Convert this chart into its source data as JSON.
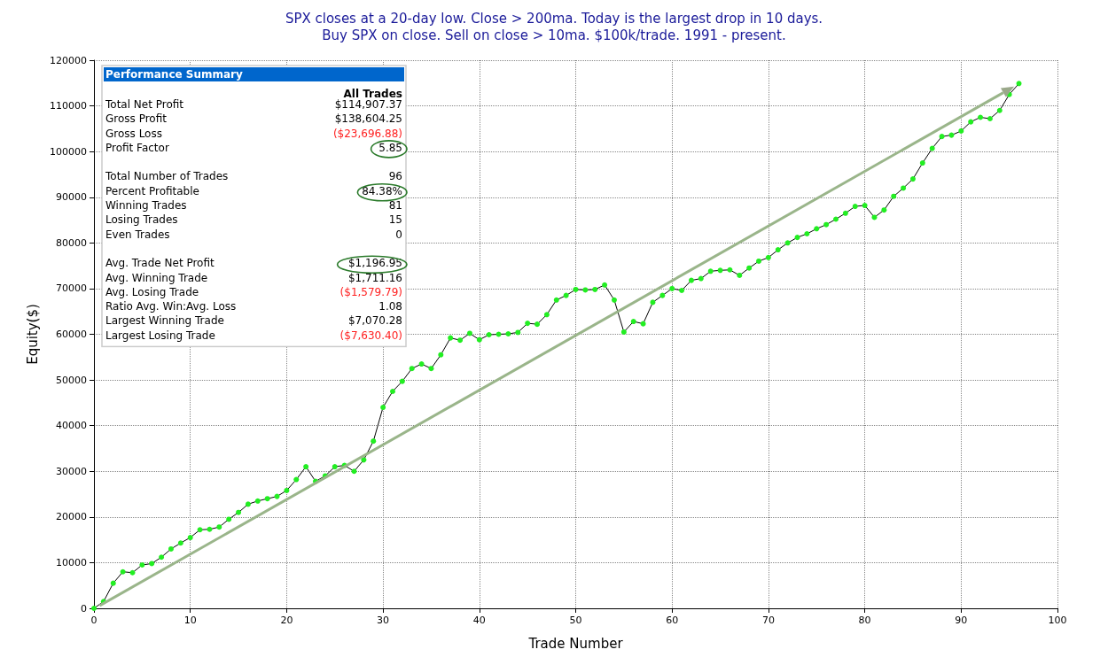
{
  "chart_data": {
    "type": "line",
    "title": "SPX closes at a 20-day low. Close > 200ma. Today is the largest drop in 10 days.",
    "subtitle": "Buy SPX on close. Sell on close > 10ma. $100k/trade. 1991 - present.",
    "xlabel": "Trade Number",
    "ylabel": "Equity($)",
    "x": [
      0,
      1,
      2,
      3,
      4,
      5,
      6,
      7,
      8,
      9,
      10,
      11,
      12,
      13,
      14,
      15,
      16,
      17,
      18,
      19,
      20,
      21,
      22,
      23,
      24,
      25,
      26,
      27,
      28,
      29,
      30,
      31,
      32,
      33,
      34,
      35,
      36,
      37,
      38,
      39,
      40,
      41,
      42,
      43,
      44,
      45,
      46,
      47,
      48,
      49,
      50,
      51,
      52,
      53,
      54,
      55,
      56,
      57,
      58,
      59,
      60,
      61,
      62,
      63,
      64,
      65,
      66,
      67,
      68,
      69,
      70,
      71,
      72,
      73,
      74,
      75,
      76,
      77,
      78,
      79,
      80,
      81,
      82,
      83,
      84,
      85,
      86,
      87,
      88,
      89,
      90,
      91,
      92,
      93,
      94,
      95,
      96
    ],
    "series": [
      {
        "color": "#000000",
        "values": [
          0,
          1500,
          5500,
          8000,
          7800,
          9500,
          9800,
          11200,
          13000,
          14300,
          15500,
          17200,
          17300,
          17800,
          19500,
          21000,
          22800,
          23500,
          24000,
          24500,
          25800,
          28200,
          31000,
          27800,
          29000,
          31000,
          31300,
          30000,
          32500,
          36600,
          44000,
          47500,
          49700,
          52500,
          53500,
          52500,
          55500,
          59200,
          58700,
          60200,
          58800,
          59900,
          60000,
          60100,
          60400,
          62400,
          62200,
          64300,
          67500,
          68500,
          69800,
          69700,
          69800,
          70800,
          67500,
          60500,
          62800,
          62300,
          67000,
          68500,
          70000,
          69600,
          71800,
          72200,
          73800,
          74000,
          74100,
          72900,
          74500,
          76000,
          76800,
          78500,
          80000,
          81200,
          82000,
          83100,
          84000,
          85200,
          86500,
          88000,
          88200,
          85600,
          87200,
          90200,
          92000,
          94000,
          97500,
          100700,
          103300,
          103600,
          104500,
          106500,
          107500,
          107200,
          109000,
          112500,
          114900
        ]
      }
    ],
    "xlim": [
      0,
      100
    ],
    "xticks": [
      0,
      10,
      20,
      30,
      40,
      50,
      60,
      70,
      80,
      90,
      100
    ],
    "ylim": [
      0,
      120000
    ],
    "yticks": [
      0,
      10000,
      20000,
      30000,
      40000,
      50000,
      60000,
      70000,
      80000,
      90000,
      100000,
      110000,
      120000
    ],
    "grid": true,
    "marker": "circle",
    "annotations": [
      "Performance Summary",
      "All Trades",
      "Total Net Profit",
      "$114,907.37",
      "Gross Profit",
      "$138,604.25",
      "Gross Loss",
      "($23,696.88)",
      "Profit Factor",
      "5.85",
      "Total Number of Trades",
      "96",
      "Percent Profitable",
      "84.38%",
      "Winning Trades",
      "81",
      "Losing Trades",
      "15",
      "Even Trades",
      "0",
      "Avg. Trade Net Profit",
      "$1,196.95",
      "Avg. Winning Trade",
      "$1,711.16",
      "Avg. Losing Trade",
      "($1,579.79)",
      "Ratio Avg. Win:Avg. Loss",
      "1.08",
      "Largest Winning Trade",
      "$7,070.28",
      "Largest Losing Trade",
      "($7,630.40)"
    ]
  }
}
